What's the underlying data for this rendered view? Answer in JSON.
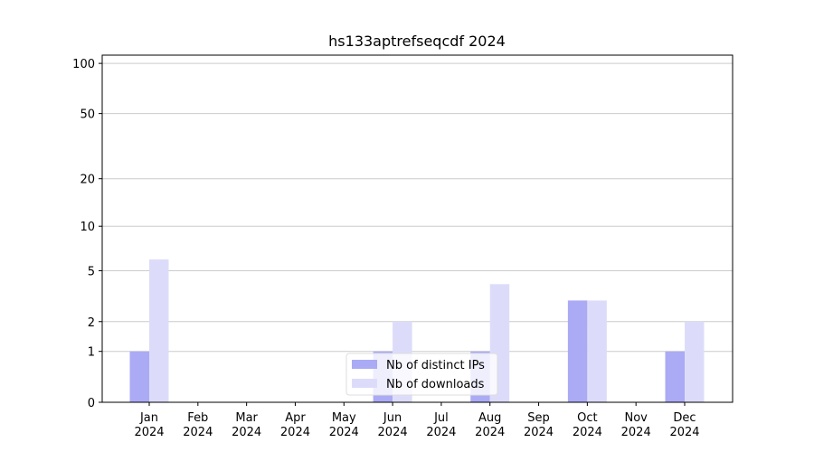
{
  "chart_data": {
    "type": "bar",
    "title": "hs133aptrefseqcdf 2024",
    "categories": [
      "Jan 2024",
      "Feb 2024",
      "Mar 2024",
      "Apr 2024",
      "May 2024",
      "Jun 2024",
      "Jul 2024",
      "Aug 2024",
      "Sep 2024",
      "Oct 2024",
      "Nov 2024",
      "Dec 2024"
    ],
    "series": [
      {
        "name": "Nb of distinct IPs",
        "color": "#aaaaf5",
        "values": [
          1,
          0,
          0,
          0,
          0,
          1,
          0,
          1,
          0,
          3,
          0,
          1
        ]
      },
      {
        "name": "Nb of downloads",
        "color": "#dcdcfa",
        "values": [
          6,
          0,
          0,
          0,
          0,
          2,
          0,
          4,
          0,
          3,
          0,
          2
        ]
      }
    ],
    "yscale": "log1p",
    "ylim": [
      0,
      112
    ],
    "yticks": [
      0,
      1,
      2,
      5,
      10,
      20,
      50,
      100
    ],
    "grid": true,
    "legend": "lower center"
  }
}
